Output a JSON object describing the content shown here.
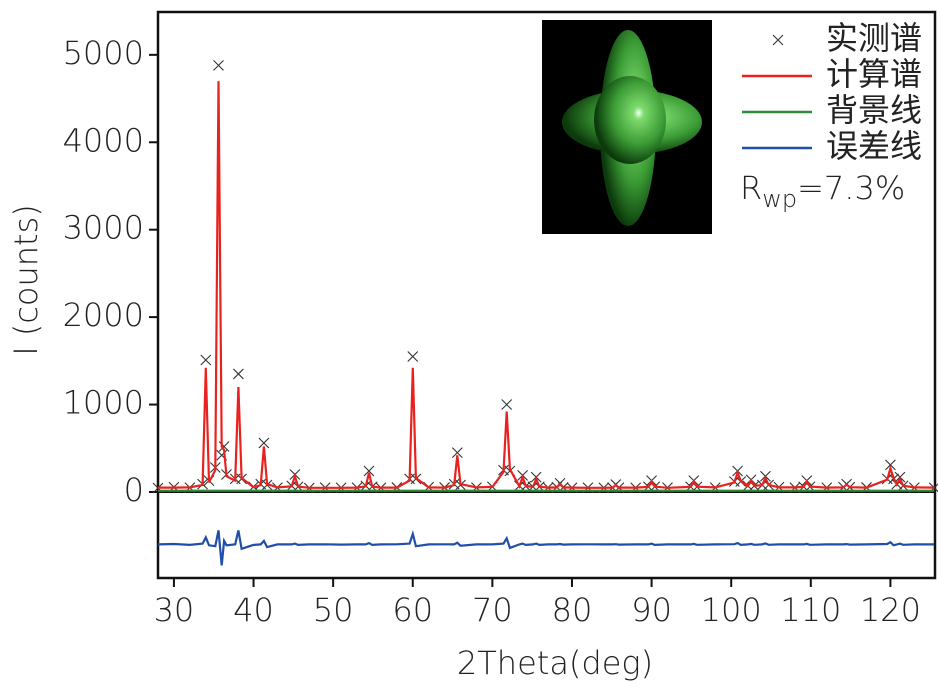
{
  "chart_data": {
    "type": "line",
    "x_label": "2Theta(deg)",
    "y_label": "I (counts)",
    "annotation": {
      "main": "R",
      "sub": "wp",
      "rest": "=7.3%"
    },
    "xlim": [
      28,
      125.6
    ],
    "ylim": [
      -984,
      5490
    ],
    "xticks": [
      30,
      40,
      50,
      60,
      70,
      80,
      90,
      100,
      110,
      120
    ],
    "yticks": [
      0,
      1000,
      2000,
      3000,
      4000,
      5000
    ],
    "x": [
      28,
      30,
      32,
      33.6,
      34.0,
      34.4,
      35.2,
      35.6,
      36.0,
      36.3,
      36.6,
      37.7,
      38.1,
      38.5,
      40.0,
      40.9,
      41.3,
      41.7,
      43,
      44.8,
      45.2,
      45.6,
      47,
      49,
      51,
      53,
      54.1,
      54.5,
      54.9,
      56,
      58,
      59.6,
      60.0,
      60.4,
      62,
      64,
      65.2,
      65.6,
      66.0,
      68,
      70,
      71.4,
      71.8,
      72.2,
      73.4,
      73.8,
      74.2,
      75.1,
      75.5,
      75.9,
      77,
      78.1,
      78.5,
      78.9,
      80,
      82,
      84,
      85.1,
      85.5,
      85.9,
      88,
      89.6,
      90.0,
      90.4,
      92,
      94.9,
      95.3,
      95.7,
      98,
      100.4,
      100.8,
      101.2,
      102.1,
      102.5,
      102.9,
      103.9,
      104.3,
      104.7,
      106,
      108,
      109.1,
      109.5,
      109.9,
      112,
      114.1,
      114.5,
      114.9,
      117,
      119.6,
      120.0,
      120.4,
      120.8,
      121.2,
      121.6,
      123,
      125.5
    ],
    "series": [
      {
        "name": "实测谱",
        "color": "#333333",
        "marker": "x",
        "values": [
          45,
          55,
          50,
          90,
          1510,
          130,
          280,
          4880,
          420,
          520,
          200,
          150,
          1350,
          150,
          60,
          90,
          560,
          80,
          50,
          70,
          200,
          60,
          45,
          50,
          48,
          50,
          70,
          240,
          60,
          48,
          52,
          150,
          1550,
          150,
          55,
          52,
          90,
          450,
          80,
          50,
          60,
          250,
          1000,
          240,
          70,
          190,
          65,
          60,
          170,
          60,
          50,
          55,
          100,
          52,
          48,
          50,
          48,
          50,
          85,
          50,
          48,
          60,
          130,
          60,
          50,
          60,
          130,
          58,
          50,
          120,
          240,
          120,
          70,
          140,
          70,
          80,
          180,
          80,
          55,
          50,
          60,
          130,
          60,
          50,
          55,
          90,
          55,
          52,
          150,
          310,
          150,
          90,
          170,
          70,
          50,
          48
        ]
      },
      {
        "name": "计算谱",
        "color": "#e8231f",
        "values": [
          50,
          50,
          52,
          80,
          1420,
          110,
          250,
          4700,
          520,
          480,
          180,
          130,
          1200,
          160,
          55,
          80,
          520,
          90,
          52,
          65,
          180,
          62,
          48,
          48,
          48,
          50,
          65,
          220,
          62,
          50,
          50,
          130,
          1420,
          160,
          52,
          50,
          80,
          420,
          90,
          52,
          58,
          230,
          920,
          260,
          65,
          170,
          68,
          58,
          150,
          62,
          50,
          52,
          90,
          52,
          50,
          48,
          48,
          50,
          80,
          50,
          50,
          58,
          120,
          62,
          48,
          58,
          120,
          60,
          52,
          110,
          220,
          125,
          68,
          130,
          72,
          78,
          160,
          82,
          52,
          52,
          58,
          120,
          62,
          50,
          52,
          85,
          55,
          50,
          140,
          270,
          160,
          85,
          150,
          72,
          52,
          50
        ]
      },
      {
        "name": "背景线",
        "color": "#2e8b3a",
        "x": [
          28,
          125.5
        ],
        "values": [
          15,
          15
        ]
      },
      {
        "name": "误差线",
        "color": "#1f4fa8",
        "values": [
          -600,
          -595,
          -605,
          -590,
          -520,
          -610,
          -620,
          -440,
          -840,
          -560,
          -610,
          -600,
          -440,
          -650,
          -605,
          -600,
          -560,
          -630,
          -600,
          -600,
          -590,
          -605,
          -600,
          -598,
          -602,
          -600,
          -600,
          -585,
          -605,
          -600,
          -598,
          -590,
          -480,
          -620,
          -600,
          -598,
          -600,
          -580,
          -615,
          -600,
          -600,
          -590,
          -530,
          -640,
          -600,
          -590,
          -605,
          -600,
          -590,
          -605,
          -600,
          -600,
          -595,
          -602,
          -600,
          -598,
          -600,
          -600,
          -597,
          -602,
          -600,
          -600,
          -592,
          -605,
          -600,
          -600,
          -594,
          -604,
          -600,
          -597,
          -585,
          -605,
          -600,
          -594,
          -604,
          -600,
          -588,
          -604,
          -600,
          -600,
          -600,
          -594,
          -604,
          -600,
          -600,
          -596,
          -602,
          -600,
          -595,
          -575,
          -610,
          -600,
          -592,
          -604,
          -600,
          -600
        ]
      }
    ]
  }
}
